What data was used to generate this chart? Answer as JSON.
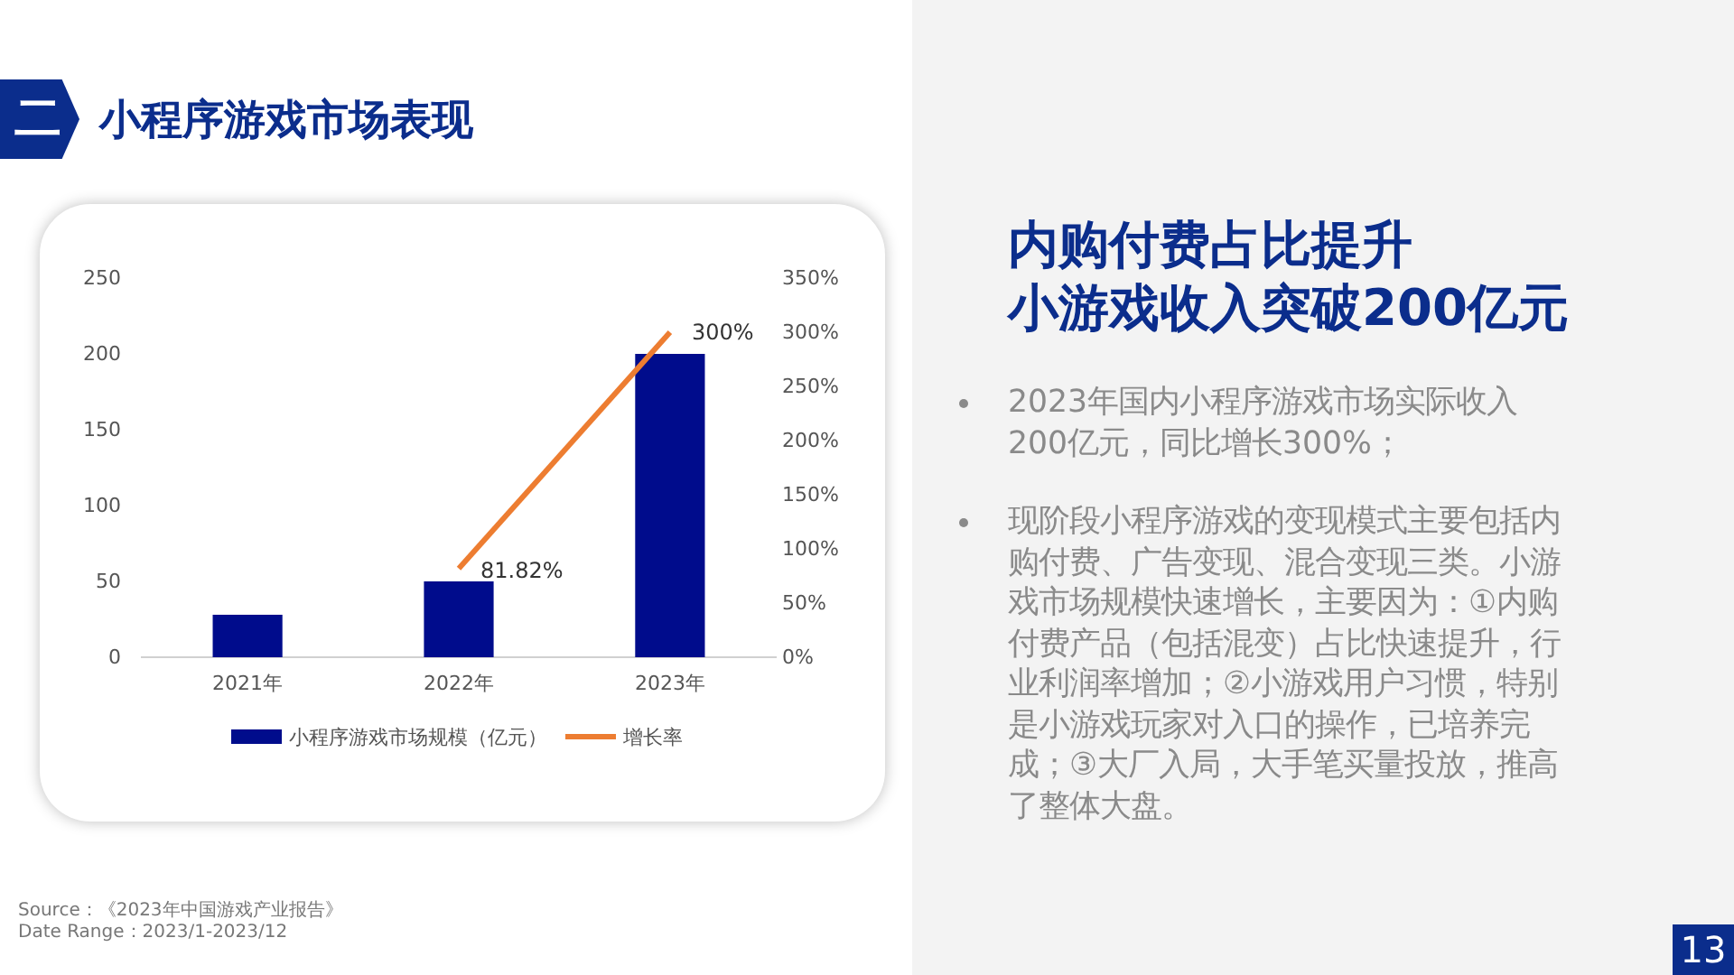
{
  "chart_data": {
    "type": "bar",
    "title": "小程序游戏市场表现",
    "categories": [
      "2021年",
      "2022年",
      "2023年"
    ],
    "series": [
      {
        "name": "小程序游戏市场规模（亿元）",
        "color": "#000c8c",
        "values": [
          28,
          50,
          200
        ]
      },
      {
        "name": "增长率",
        "type": "line",
        "axis": "y2",
        "color": "#ed7d31",
        "values": [
          null,
          81.82,
          300
        ],
        "value_labels": [
          null,
          "81.82%",
          "300%"
        ]
      }
    ],
    "ylim": [
      0,
      250
    ],
    "yticks": [
      0,
      50,
      100,
      150,
      200,
      250
    ],
    "y2lim": [
      0,
      350
    ],
    "y2ticks": [
      {
        "value": 0,
        "label": "0%"
      },
      {
        "value": 50,
        "label": "50%"
      },
      {
        "value": 100,
        "label": "100%"
      },
      {
        "value": 150,
        "label": "150%"
      },
      {
        "value": 200,
        "label": "200%"
      },
      {
        "value": 250,
        "label": "250%"
      },
      {
        "value": 300,
        "label": "300%"
      },
      {
        "value": 350,
        "label": "350%"
      }
    ],
    "grid": false,
    "legend": "bottom",
    "marker": "none",
    "line_style": "solid",
    "annotations": [
      "二",
      "内购付费占比提升",
      "小游戏收入突破200亿元",
      "2023年国内小程序游戏市场实际收入200亿元，同比增长300%；",
      "现阶段小程序游戏的变现模式主要包括内购付费、广告变现、混合变现三类。小游戏市场规模快速增长，主要因为：①内购付费产品（包括混变）占比快速提升，行业利润率增加；②小游戏用户习惯，特别是小游戏玩家对入口的操作，已培养完成；③大厂入局，大手笔买量投放，推高了整体大盘。",
      "Source：《2023年中国游戏产业报告》",
      "Date Range：2023/1-2023/12",
      "13"
    ]
  }
}
